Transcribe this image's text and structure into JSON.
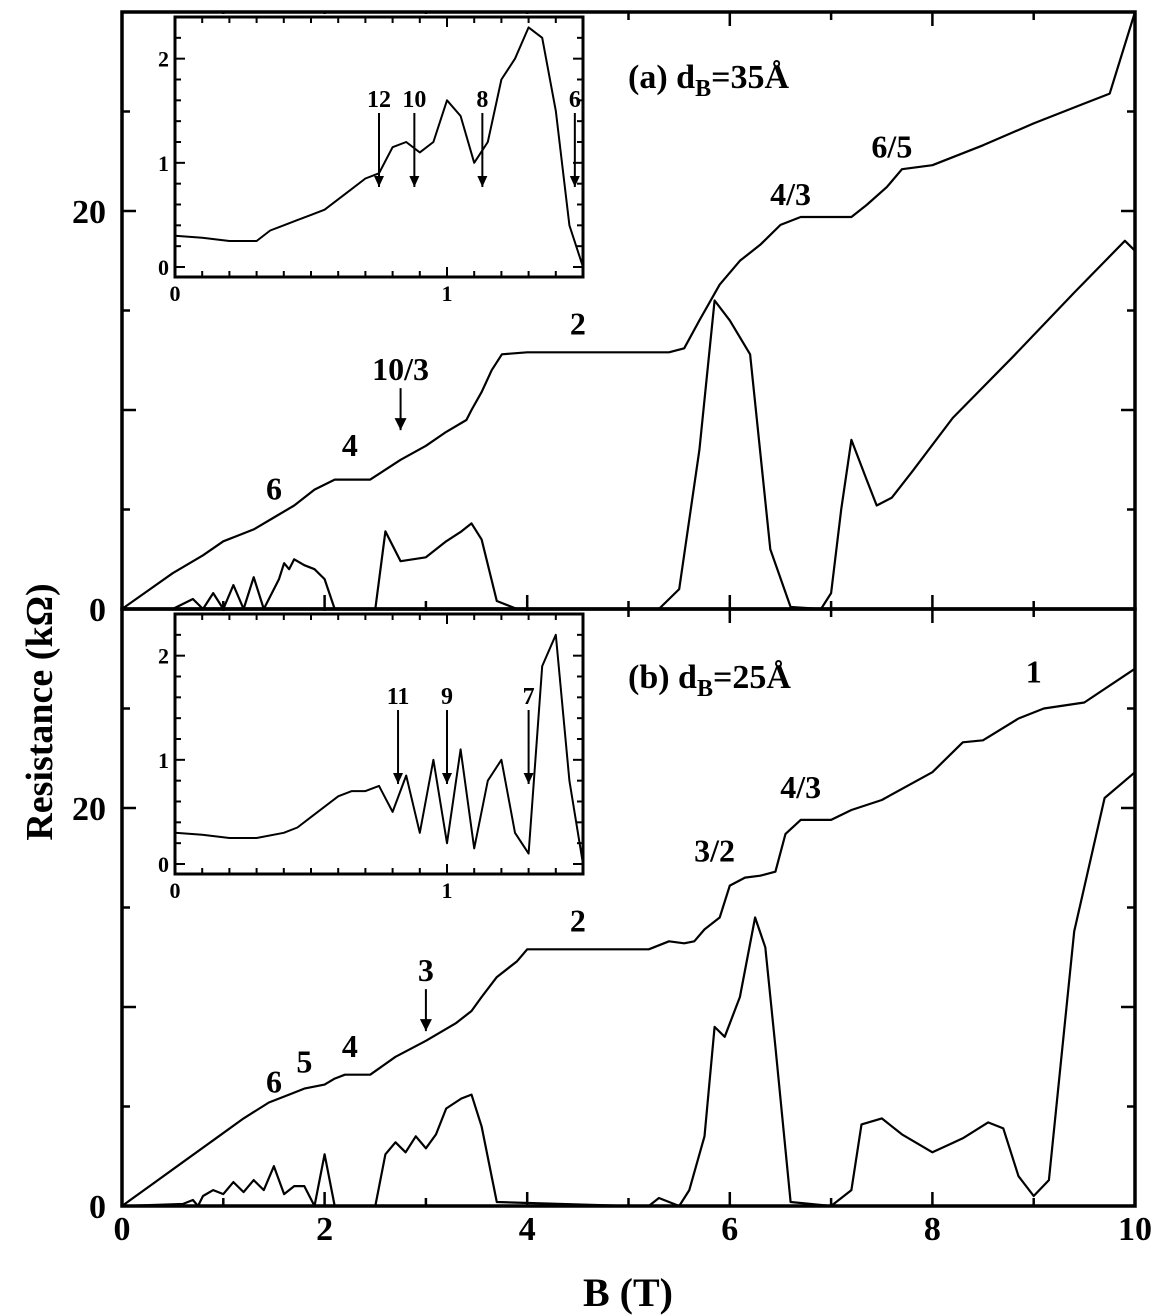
{
  "chart_data": {
    "type": "line",
    "xlabel": "B (T)",
    "ylabel": "Resistance (kΩ)",
    "xlim": [
      0,
      10
    ],
    "x_ticks": [
      "0",
      "2",
      "4",
      "6",
      "8",
      "10"
    ],
    "shared_x_axis": true,
    "panels": [
      {
        "id": "a",
        "label_main": "(a) d",
        "label_sub": "B",
        "label_tail": "=35Å",
        "y_ticks": [
          "0",
          "20"
        ],
        "ylim": [
          0,
          30
        ],
        "series": [
          {
            "role": "Rxy",
            "x": [
              0,
              0.25,
              0.5,
              0.8,
              1.0,
              1.15,
              1.3,
              1.5,
              1.7,
              1.9,
              2.1,
              2.2,
              2.45,
              2.6,
              2.75,
              3.0,
              3.2,
              3.4,
              3.45,
              3.55,
              3.65,
              3.75,
              4.0,
              4.5,
              5.0,
              5.4,
              5.55,
              5.7,
              5.9,
              6.1,
              6.3,
              6.5,
              6.7,
              6.9,
              7.05,
              7.2,
              7.35,
              7.55,
              7.7,
              8.0,
              8.5,
              9.0,
              9.5,
              9.75,
              10.0
            ],
            "y": [
              0,
              0.9,
              1.8,
              2.7,
              3.4,
              3.7,
              4.0,
              4.6,
              5.2,
              6.0,
              6.5,
              6.5,
              6.5,
              7.0,
              7.5,
              8.2,
              8.9,
              9.5,
              10.0,
              10.9,
              12.0,
              12.8,
              12.9,
              12.9,
              12.9,
              12.9,
              13.1,
              14.5,
              16.3,
              17.5,
              18.3,
              19.3,
              19.7,
              19.7,
              19.7,
              19.7,
              20.3,
              21.2,
              22.1,
              22.3,
              23.3,
              24.4,
              25.4,
              25.9,
              30.0
            ]
          },
          {
            "role": "Rxx",
            "x": [
              0,
              0.5,
              0.7,
              0.8,
              0.9,
              1.0,
              1.1,
              1.2,
              1.3,
              1.4,
              1.55,
              1.6,
              1.65,
              1.7,
              1.8,
              1.9,
              2.0,
              2.1,
              2.2,
              2.5,
              2.6,
              2.75,
              3.0,
              3.2,
              3.35,
              3.45,
              3.55,
              3.7,
              3.9,
              5.3,
              5.5,
              5.7,
              5.85,
              6.0,
              6.2,
              6.4,
              6.6,
              6.9,
              7.0,
              7.1,
              7.2,
              7.35,
              7.45,
              7.6,
              7.8,
              8.2,
              8.8,
              9.4,
              9.9,
              10.0
            ],
            "y": [
              0,
              0,
              0.5,
              0,
              0.8,
              0,
              1.2,
              0,
              1.6,
              0,
              1.5,
              2.3,
              2.0,
              2.5,
              2.2,
              2.0,
              1.5,
              0,
              0,
              0,
              3.9,
              2.4,
              2.6,
              3.4,
              3.9,
              4.3,
              3.5,
              0.4,
              0,
              0,
              1.0,
              8.0,
              15.5,
              14.5,
              12.8,
              3.0,
              0.1,
              0,
              0.8,
              5.0,
              8.5,
              6.5,
              5.2,
              5.6,
              6.9,
              9.6,
              12.7,
              15.9,
              18.5,
              18.0
            ]
          }
        ],
        "annotations": [
          {
            "text": "6",
            "x": 1.5,
            "y": 5.5
          },
          {
            "text": "4",
            "x": 2.25,
            "y": 7.7
          },
          {
            "text": "10/3",
            "x": 2.75,
            "y": 11.5
          },
          {
            "text": "2",
            "x": 4.5,
            "y": 13.8
          },
          {
            "text": "4/3",
            "x": 6.6,
            "y": 20.3
          },
          {
            "text": "6/5",
            "x": 7.6,
            "y": 22.7
          }
        ],
        "inset": {
          "xlim": [
            0,
            1.5
          ],
          "ylim": [
            0,
            2.4
          ],
          "x_ticks": [
            "0",
            "1"
          ],
          "y_ticks": [
            "0",
            "1",
            "2"
          ],
          "x": [
            0,
            0.1,
            0.2,
            0.3,
            0.35,
            0.4,
            0.45,
            0.5,
            0.55,
            0.6,
            0.65,
            0.7,
            0.75,
            0.8,
            0.85,
            0.9,
            0.95,
            1.0,
            1.05,
            1.1,
            1.15,
            1.2,
            1.25,
            1.3,
            1.35,
            1.4,
            1.45,
            1.5
          ],
          "y": [
            0.3,
            0.28,
            0.25,
            0.25,
            0.35,
            0.4,
            0.45,
            0.5,
            0.55,
            0.65,
            0.75,
            0.85,
            0.9,
            1.15,
            1.2,
            1.1,
            1.2,
            1.6,
            1.45,
            1.0,
            1.2,
            1.8,
            2.0,
            2.3,
            2.2,
            1.5,
            0.4,
            0.0
          ],
          "arrow_labels": [
            {
              "text": "12",
              "x": 0.75
            },
            {
              "text": "10",
              "x": 0.88
            },
            {
              "text": "8",
              "x": 1.13
            },
            {
              "text": "6",
              "x": 1.47
            }
          ]
        }
      },
      {
        "id": "b",
        "label_main": "(b) d",
        "label_sub": "B",
        "label_tail": "=25Å",
        "y_ticks": [
          "0",
          "20"
        ],
        "ylim": [
          0,
          30
        ],
        "series": [
          {
            "role": "Rxy",
            "x": [
              0,
              0.3,
              0.6,
              0.9,
              1.2,
              1.45,
              1.65,
              1.8,
              2.0,
              2.1,
              2.2,
              2.45,
              2.7,
              3.0,
              3.3,
              3.45,
              3.55,
              3.7,
              3.9,
              4.0,
              4.5,
              5.0,
              5.2,
              5.3,
              5.4,
              5.55,
              5.65,
              5.75,
              5.9,
              6.0,
              6.15,
              6.3,
              6.45,
              6.55,
              6.7,
              6.9,
              7.0,
              7.2,
              7.5,
              8.0,
              8.3,
              8.5,
              8.85,
              9.1,
              9.5,
              10.0
            ],
            "y": [
              0,
              1.1,
              2.2,
              3.3,
              4.4,
              5.2,
              5.6,
              5.9,
              6.1,
              6.4,
              6.6,
              6.6,
              7.5,
              8.3,
              9.2,
              9.8,
              10.5,
              11.5,
              12.3,
              12.9,
              12.9,
              12.9,
              12.9,
              13.1,
              13.3,
              13.2,
              13.3,
              13.9,
              14.5,
              16.1,
              16.5,
              16.6,
              16.8,
              18.7,
              19.4,
              19.4,
              19.4,
              19.9,
              20.4,
              21.8,
              23.3,
              23.4,
              24.5,
              25.0,
              25.3,
              27.0
            ]
          },
          {
            "role": "Rxx",
            "x": [
              0,
              0.6,
              0.7,
              0.75,
              0.8,
              0.9,
              1.0,
              1.1,
              1.2,
              1.3,
              1.4,
              1.5,
              1.6,
              1.7,
              1.8,
              1.9,
              2.0,
              2.1,
              2.5,
              2.6,
              2.7,
              2.8,
              2.9,
              3.0,
              3.1,
              3.2,
              3.35,
              3.45,
              3.55,
              3.7,
              5.0,
              5.2,
              5.3,
              5.5,
              5.6,
              5.75,
              5.85,
              5.95,
              6.1,
              6.25,
              6.35,
              6.45,
              6.6,
              7.0,
              7.2,
              7.3,
              7.5,
              7.7,
              8.0,
              8.3,
              8.55,
              8.7,
              8.85,
              9.0,
              9.15,
              9.4,
              9.7,
              10.0
            ],
            "y": [
              0,
              0.1,
              0.3,
              0,
              0.5,
              0.8,
              0.6,
              1.2,
              0.7,
              1.3,
              0.8,
              2.0,
              0.6,
              1.0,
              1.0,
              0,
              2.6,
              0,
              0,
              2.6,
              3.2,
              2.7,
              3.5,
              2.9,
              3.6,
              4.9,
              5.4,
              5.6,
              4.0,
              0.2,
              0,
              0,
              0.4,
              0,
              0.8,
              3.5,
              9.0,
              8.5,
              10.5,
              14.5,
              13.0,
              8.0,
              0.2,
              0,
              0.8,
              4.1,
              4.4,
              3.6,
              2.7,
              3.4,
              4.2,
              3.9,
              1.5,
              0.5,
              1.3,
              13.8,
              20.5,
              21.8
            ]
          }
        ],
        "annotations": [
          {
            "text": "6",
            "x": 1.5,
            "y": 5.7
          },
          {
            "text": "5",
            "x": 1.8,
            "y": 6.7
          },
          {
            "text": "4",
            "x": 2.25,
            "y": 7.5
          },
          {
            "text": "3",
            "x": 3.0,
            "y": 11.3
          },
          {
            "text": "2",
            "x": 4.5,
            "y": 13.8
          },
          {
            "text": "3/2",
            "x": 5.85,
            "y": 17.3
          },
          {
            "text": "4/3",
            "x": 6.7,
            "y": 20.5
          },
          {
            "text": "1",
            "x": 9.0,
            "y": 26.3
          }
        ],
        "inset": {
          "xlim": [
            0,
            1.5
          ],
          "ylim": [
            0,
            2.4
          ],
          "x_ticks": [
            "0",
            "1"
          ],
          "y_ticks": [
            "0",
            "1",
            "2"
          ],
          "x": [
            0,
            0.1,
            0.2,
            0.3,
            0.4,
            0.45,
            0.5,
            0.55,
            0.6,
            0.65,
            0.7,
            0.75,
            0.8,
            0.85,
            0.9,
            0.95,
            1.0,
            1.05,
            1.1,
            1.15,
            1.2,
            1.25,
            1.3,
            1.35,
            1.4,
            1.45,
            1.5
          ],
          "y": [
            0.3,
            0.28,
            0.25,
            0.25,
            0.3,
            0.35,
            0.45,
            0.55,
            0.65,
            0.7,
            0.7,
            0.75,
            0.5,
            0.85,
            0.3,
            1.0,
            0.2,
            1.1,
            0.15,
            0.8,
            1.0,
            0.3,
            0.1,
            1.9,
            2.2,
            0.8,
            0.0
          ],
          "arrow_labels": [
            {
              "text": "11",
              "x": 0.82
            },
            {
              "text": "9",
              "x": 1.0
            },
            {
              "text": "7",
              "x": 1.3
            }
          ]
        }
      }
    ]
  }
}
